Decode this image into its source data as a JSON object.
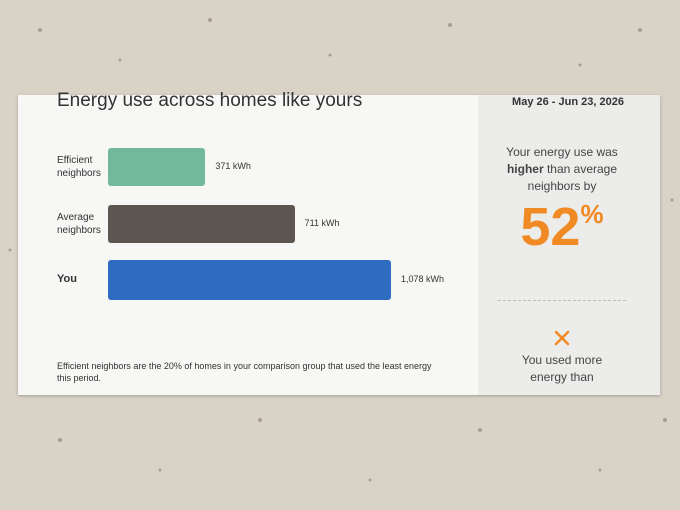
{
  "chart_data": {
    "type": "bar",
    "orientation": "horizontal",
    "title": "Energy use across homes like yours",
    "categories": [
      "Efficient neighbors",
      "Average neighbors",
      "You"
    ],
    "values": [
      371,
      711,
      1078
    ],
    "value_labels": [
      "371 kWh",
      "711 kWh",
      "1,078 kWh"
    ],
    "colors": [
      "#72b99c",
      "#5b5750",
      "#2f6bc1"
    ],
    "footnote": "Efficient neighbors are the 20% of homes in your comparison group that used the least energy this period."
  },
  "panel": {
    "date_range": "May 26 - Jun 23, 2026",
    "comparison": [
      "Your energy use was",
      "higher",
      "than average neighbors by"
    ],
    "highlight": {
      "number": "52",
      "unit": "%"
    },
    "result": "You used more energy than"
  }
}
